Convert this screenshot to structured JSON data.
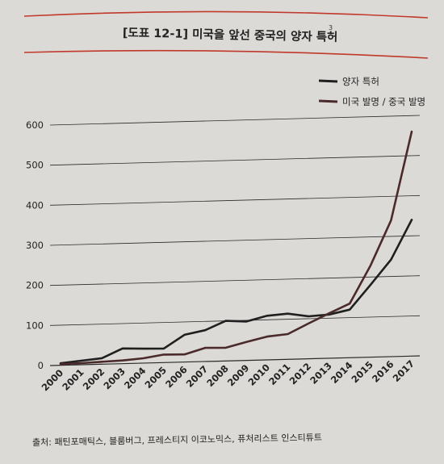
{
  "figure": {
    "title": "[도표 12-1] 미국을 앞선 중국의 양자 특허",
    "footnote_marker": "3",
    "source": "출처: 패틴포매틱스, 블룸버그, 프레스티지 이코노믹스, 퓨처리스트 인스티튜트",
    "accent_color": "#c0392b"
  },
  "chart_data": {
    "type": "line",
    "title": "[도표 12-1] 미국을 앞선 중국의 양자 특허",
    "xlabel": "",
    "ylabel": "",
    "x": [
      "2000",
      "2001",
      "2002",
      "2003",
      "2004",
      "2005",
      "2006",
      "2007",
      "2008",
      "2009",
      "2010",
      "2011",
      "2012",
      "2013",
      "2014",
      "2015",
      "2016",
      "2017"
    ],
    "ylim": [
      0,
      600
    ],
    "yticks": [
      0,
      100,
      200,
      300,
      400,
      500,
      600
    ],
    "grid": true,
    "legend_position": "top-right",
    "series": [
      {
        "name": "양자 특허",
        "color": "#1f1f1f",
        "values": [
          5,
          10,
          15,
          38,
          36,
          35,
          68,
          78,
          100,
          97,
          110,
          114,
          106,
          109,
          120,
          180,
          242,
          340
        ]
      },
      {
        "name": "미국 발명 / 중국 발명",
        "color": "#4a2a2a",
        "values": [
          3,
          4,
          6,
          8,
          12,
          20,
          19,
          34,
          33,
          46,
          58,
          63,
          88,
          112,
          135,
          228,
          340,
          560
        ]
      }
    ]
  }
}
